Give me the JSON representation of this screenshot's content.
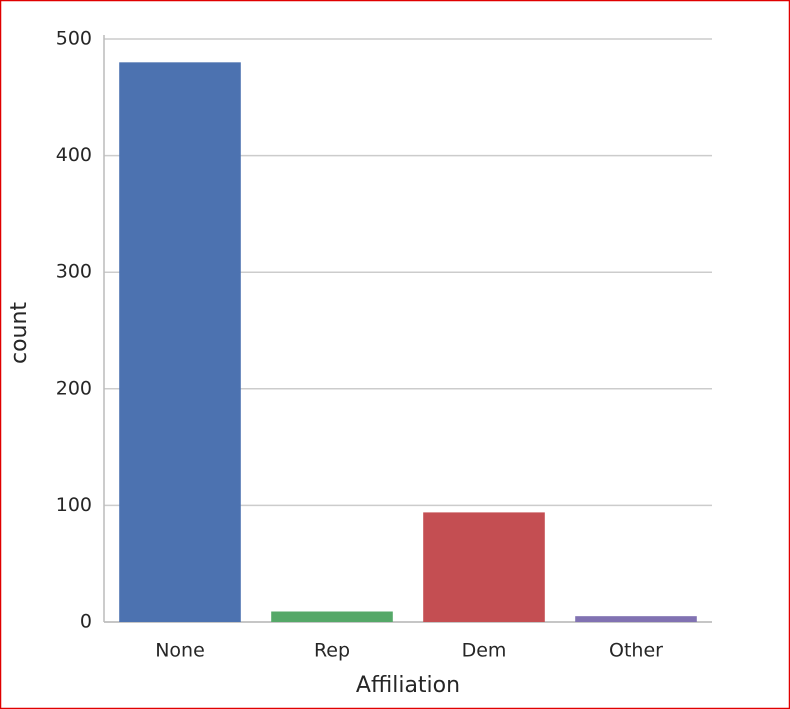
{
  "chart_data": {
    "type": "bar",
    "x_label": "Affiliation",
    "y_label": "count",
    "categories": [
      "None",
      "Rep",
      "Dem",
      "Other"
    ],
    "values": [
      480,
      9,
      94,
      5
    ],
    "colors": [
      "#4c72b0",
      "#55a868",
      "#c44e52",
      "#8172b2"
    ],
    "ylim": [
      0,
      500
    ],
    "yticks": [
      0,
      100,
      200,
      300,
      400,
      500
    ],
    "grid": true
  }
}
